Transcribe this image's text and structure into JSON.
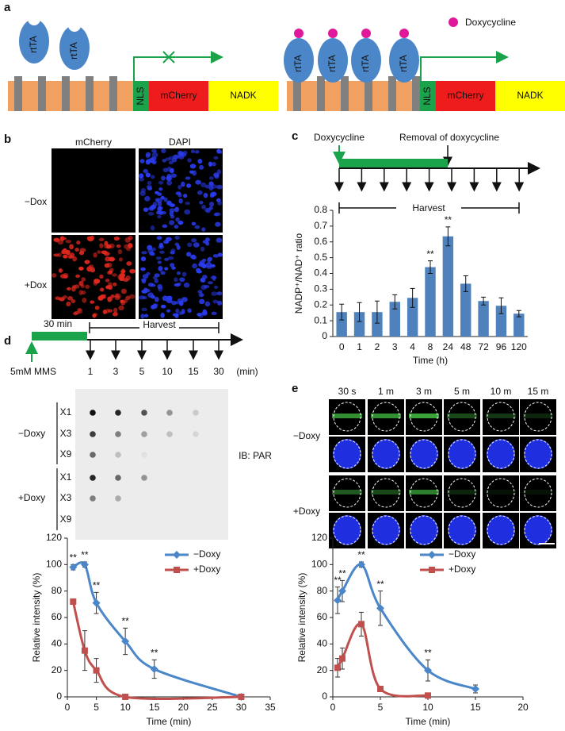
{
  "figure": {
    "panel_labels": [
      "a",
      "b",
      "c",
      "d",
      "e"
    ],
    "a": {
      "left_proteins": [
        "rtTA",
        "rtTA"
      ],
      "right_proteins": [
        "rtTA",
        "rtTA",
        "rtTA",
        "rtTA"
      ],
      "left_construct": [
        "NLS",
        "mCherry",
        "NADK"
      ],
      "right_construct": [
        "NLS",
        "mCherry",
        "NADK"
      ],
      "legend": "Doxycycline"
    },
    "b": {
      "columns": [
        "mCherry",
        "DAPI"
      ],
      "rows": [
        "−Dox",
        "+Dox"
      ]
    },
    "c": {
      "start": "Doxycycline",
      "end": "Removal of doxycycline",
      "harvest": "Harvest"
    },
    "d": {
      "treatment": "30 min",
      "harvest": "Harvest",
      "agent": "5mM MMS",
      "timepoints": [
        "1",
        "3",
        "5",
        "10",
        "15",
        "30"
      ],
      "unit": "(min)",
      "dilutions": [
        "X1",
        "X3",
        "X9",
        "X1",
        "X3",
        "X9"
      ],
      "groups": [
        "−Doxy",
        "+Doxy"
      ],
      "antibody": "IB: PAR"
    },
    "e": {
      "timepoints": [
        "30 s",
        "1 m",
        "3 m",
        "5 m",
        "10 m",
        "15 m"
      ],
      "groups": [
        "−Doxy",
        "+Doxy"
      ]
    }
  },
  "chart_data": [
    {
      "type": "bar",
      "x_label": "Time (h)",
      "y_label": "NADP⁺/NAD⁺ ratio",
      "categories": [
        "0",
        "1",
        "2",
        "3",
        "4",
        "8",
        "24",
        "48",
        "72",
        "96",
        "120"
      ],
      "values": [
        0.155,
        0.155,
        0.155,
        0.22,
        0.245,
        0.44,
        0.635,
        0.335,
        0.225,
        0.195,
        0.145
      ],
      "errors": [
        0.05,
        0.06,
        0.07,
        0.045,
        0.06,
        0.04,
        0.06,
        0.05,
        0.025,
        0.05,
        0.02
      ],
      "value_annotations": [
        null,
        null,
        null,
        null,
        null,
        "**",
        "**",
        null,
        null,
        null,
        null
      ],
      "color": "#4f81bd",
      "ylim": [
        0,
        0.8
      ],
      "yticks": [
        0,
        0.1,
        0.2,
        0.3,
        0.4,
        0.5,
        0.6,
        0.7,
        0.8
      ]
    },
    {
      "type": "line",
      "x_label": "Time (min)",
      "y_label": "Relative intensity (%)",
      "xlim": [
        0,
        35
      ],
      "xticks": [
        0,
        5,
        10,
        15,
        20,
        25,
        30,
        35
      ],
      "ylim": [
        0,
        120
      ],
      "yticks": [
        0,
        20,
        40,
        60,
        80,
        100,
        120
      ],
      "series": [
        {
          "name": "−Doxy",
          "color": "#4a86c8",
          "marker": "diamond",
          "x": [
            1,
            3,
            5,
            10,
            15,
            30
          ],
          "values": [
            98,
            100,
            71,
            42,
            21,
            0
          ],
          "errors": [
            2,
            2,
            8,
            10,
            7,
            1
          ],
          "value_annotations": [
            "**",
            "**",
            "**",
            "**",
            "**",
            null
          ]
        },
        {
          "name": "+Doxy",
          "color": "#c0504d",
          "marker": "square",
          "x": [
            1,
            3,
            5,
            10,
            30
          ],
          "values": [
            72,
            35,
            20,
            0,
            0
          ],
          "errors": [
            0,
            15,
            9,
            1,
            0
          ]
        }
      ]
    },
    {
      "type": "line",
      "x_label": "Time (min)",
      "y_label": "Relative intensity (%)",
      "xlim": [
        0,
        20
      ],
      "xticks": [
        0,
        5,
        10,
        15,
        20
      ],
      "ylim": [
        0,
        120
      ],
      "yticks": [
        0,
        20,
        40,
        60,
        80,
        100,
        120
      ],
      "series": [
        {
          "name": "−Doxy",
          "color": "#4a86c8",
          "marker": "diamond",
          "x": [
            0.5,
            1,
            3,
            5,
            10,
            15
          ],
          "values": [
            73,
            80,
            100,
            67,
            20,
            6
          ],
          "errors": [
            10,
            8,
            2,
            13,
            8,
            3
          ],
          "value_annotations": [
            "**",
            "**",
            "**",
            "**",
            "**",
            null
          ]
        },
        {
          "name": "+Doxy",
          "color": "#c0504d",
          "marker": "square",
          "x": [
            0.5,
            1,
            3,
            5,
            10
          ],
          "values": [
            22,
            29,
            55,
            6,
            1
          ],
          "errors": [
            7,
            8,
            9,
            2,
            1
          ]
        }
      ]
    }
  ]
}
